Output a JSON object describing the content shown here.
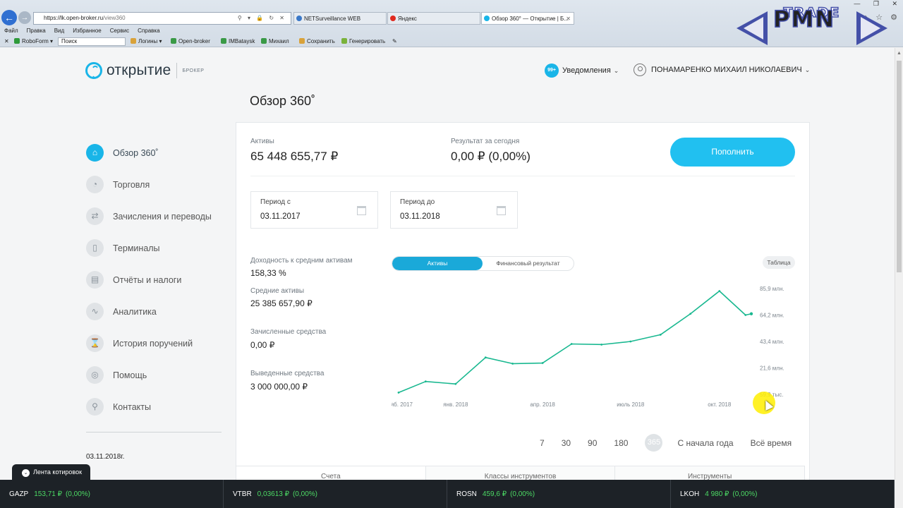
{
  "browser": {
    "address_host": "https://lk.open-broker.ru",
    "address_path": "/view360",
    "tabs": [
      {
        "label": "NETSurveillance WEB",
        "color": "#3a78c8"
      },
      {
        "label": "Яндекс",
        "color": "#e02a1f"
      },
      {
        "label": "Обзор 360° — Открытие | Б...",
        "color": "#19b5e8"
      }
    ],
    "menu": [
      "Файл",
      "Правка",
      "Вид",
      "Избранное",
      "Сервис",
      "Справка"
    ],
    "favorites": {
      "roboform": "RoboForm",
      "search_placeholder": "Поиск",
      "items": [
        "Логины",
        "Open-broker",
        "IMBataysk",
        "Михаил",
        "Сохранить",
        "Генерировать"
      ]
    }
  },
  "watermark": {
    "line1": "PMN",
    "line2": "TRADE"
  },
  "header": {
    "brand_name": "открытие",
    "brand_sub": "БРОКЕР",
    "notifications_badge": "99+",
    "notifications_label": "Уведомления",
    "user_name": "ПОНАМАРЕНКО МИХАИЛ НИКОЛАЕВИЧ"
  },
  "page_title": "Обзор 360˚",
  "sidebar": {
    "items": [
      {
        "label": "Обзор 360˚",
        "icon": "home-icon"
      },
      {
        "label": "Торговля",
        "icon": "trading-icon"
      },
      {
        "label": "Зачисления и переводы",
        "icon": "transfer-icon"
      },
      {
        "label": "Терминалы",
        "icon": "terminal-icon"
      },
      {
        "label": "Отчёты и налоги",
        "icon": "report-icon"
      },
      {
        "label": "Аналитика",
        "icon": "analytics-icon"
      },
      {
        "label": "История поручений",
        "icon": "history-icon"
      },
      {
        "label": "Помощь",
        "icon": "help-icon"
      },
      {
        "label": "Контакты",
        "icon": "location-icon"
      }
    ],
    "date": "03.11.2018г."
  },
  "summary": {
    "assets_label": "Активы",
    "assets_value": "65 448 655,77 ₽",
    "today_label": "Результат за сегодня",
    "today_value": "0,00 ₽ (0,00%)",
    "deposit_button": "Пополнить"
  },
  "period": {
    "from_label": "Период с",
    "from_value": "03.11.2017",
    "to_label": "Период до",
    "to_value": "03.11.2018"
  },
  "stats": {
    "yield_label": "Доходность к средним активам",
    "yield_value": "158,33 %",
    "avg_assets_label": "Средние активы",
    "avg_assets_value": "25 385 657,90 ₽",
    "deposited_label": "Зачисленные средства",
    "deposited_value": "0,00 ₽",
    "withdrawn_label": "Выведенные средства",
    "withdrawn_value": "3 000 000,00 ₽"
  },
  "chart_toggle": {
    "assets": "Активы",
    "financial_result": "Финансовый результат",
    "table": "Таблица"
  },
  "chart_data": {
    "type": "line",
    "color": "#19b890",
    "x_ticks": [
      "нояб. 2017",
      "янв. 2018",
      "апр. 2018",
      "июль 2018",
      "окт. 2018"
    ],
    "y_ticks": [
      "59,9 тыс.",
      "21,6 млн.",
      "43,4 млн.",
      "64,2 млн.",
      "85,9 млн."
    ],
    "ylim": [
      0,
      86
    ],
    "x": [
      "2017-11-03",
      "2017-12-01",
      "2018-01-01",
      "2018-02-01",
      "2018-03-01",
      "2018-04-01",
      "2018-05-01",
      "2018-06-01",
      "2018-07-01",
      "2018-08-01",
      "2018-09-01",
      "2018-10-01",
      "2018-10-28",
      "2018-11-03"
    ],
    "values": [
      1.5,
      10.5,
      8.5,
      30,
      25,
      25.5,
      41,
      40.5,
      43,
      48.5,
      65.5,
      84,
      64.5,
      65.5
    ],
    "y_unit": "млн. ₽"
  },
  "ranges": [
    "7",
    "30",
    "90",
    "180",
    "365",
    "С начала года",
    "Всё время"
  ],
  "bottom_tabs": [
    "Счета",
    "Классы инструментов",
    "Инструменты"
  ],
  "ticker": {
    "toggle_label": "Лента котировок",
    "items": [
      {
        "name": "GAZP",
        "price": "153,71 ₽",
        "change": "(0,00%)"
      },
      {
        "name": "VTBR",
        "price": "0,03613 ₽",
        "change": "(0,00%)"
      },
      {
        "name": "ROSN",
        "price": "459,6 ₽",
        "change": "(0,00%)"
      },
      {
        "name": "LKOH",
        "price": "4 980 ₽",
        "change": "(0,00%)"
      }
    ]
  }
}
